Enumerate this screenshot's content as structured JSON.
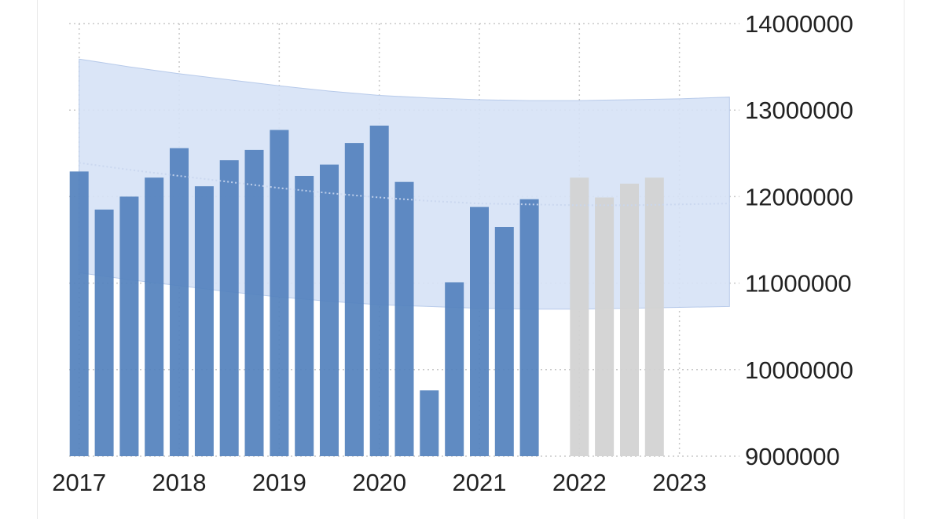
{
  "chart_data": {
    "type": "bar",
    "title": "",
    "xlabel": "",
    "ylabel": "",
    "ylim": [
      9000000,
      14000000
    ],
    "y_ticks": [
      "9000000",
      "10000000",
      "11000000",
      "12000000",
      "13000000",
      "14000000"
    ],
    "x_ticks": [
      "2017",
      "2018",
      "2019",
      "2020",
      "2021",
      "2022",
      "2023"
    ],
    "x_range": [
      2016.9,
      2023.6
    ],
    "grid": true,
    "colors": {
      "actual": "#5482bd",
      "forecast": "#d3d3d3",
      "band_fill": "#d6e2f6",
      "band_edge": "#b7caea",
      "grid": "#c8c8c8"
    },
    "series": [
      {
        "kind": "actual",
        "x": [
          2017.0,
          2017.25,
          2017.5,
          2017.75,
          2018.0,
          2018.25,
          2018.5,
          2018.75,
          2019.0,
          2019.25,
          2019.5,
          2019.75,
          2020.0,
          2020.25,
          2020.5,
          2020.75,
          2021.0,
          2021.25
        ],
        "values": [
          12290000,
          11850000,
          12000000,
          12220000,
          12560000,
          12120000,
          12420000,
          12540000,
          12770000,
          12240000,
          12370000,
          12620000,
          12820000,
          12170000,
          9760000,
          11010000,
          11880000,
          11650000
        ]
      },
      {
        "kind": "actual",
        "x": [
          2021.5
        ],
        "values": [
          11970000
        ]
      },
      {
        "kind": "forecast",
        "x": [
          2022.0,
          2022.25,
          2022.5,
          2022.75
        ],
        "values": [
          12220000,
          11990000,
          12150000,
          12220000
        ]
      }
    ],
    "band": {
      "x": [
        2017.0,
        2017.5,
        2018.0,
        2018.5,
        2019.0,
        2019.5,
        2020.0,
        2020.5,
        2021.0,
        2021.5,
        2022.0,
        2022.5,
        2023.0,
        2023.5
      ],
      "upper": [
        13590000,
        13500000,
        13420000,
        13350000,
        13280000,
        13220000,
        13170000,
        13140000,
        13120000,
        13110000,
        13110000,
        13120000,
        13130000,
        13150000
      ],
      "mid": [
        12390000,
        12310000,
        12240000,
        12170000,
        12100000,
        12040000,
        11990000,
        11950000,
        11920000,
        11910000,
        11900000,
        11900000,
        11910000,
        11920000
      ],
      "lower": [
        11120000,
        11040000,
        10970000,
        10900000,
        10840000,
        10790000,
        10750000,
        10730000,
        10710000,
        10700000,
        10700000,
        10710000,
        10720000,
        10730000
      ]
    }
  }
}
